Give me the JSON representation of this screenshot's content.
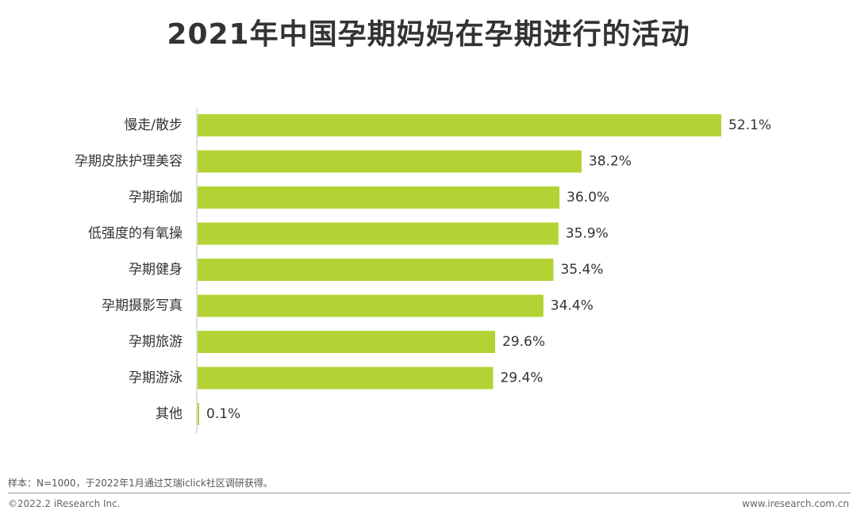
{
  "title": "2021年中国孕期妈妈在孕期进行的活动",
  "note": "样本：N=1000，于2022年1月通过艾瑞iclick社区调研获得。",
  "copyright": "©2022.2 iResearch Inc.",
  "website": "www.iresearch.com.cn",
  "colors": {
    "bar": "#b3d334",
    "axis": "#bfbfbf"
  },
  "chart_data": {
    "type": "bar",
    "orientation": "horizontal",
    "categories": [
      "慢走/散步",
      "孕期皮肤护理美容",
      "孕期瑜伽",
      "低强度的有氧操",
      "孕期健身",
      "孕期摄影写真",
      "孕期旅游",
      "孕期游泳",
      "其他"
    ],
    "values": [
      52.1,
      38.2,
      36.0,
      35.9,
      35.4,
      34.4,
      29.6,
      29.4,
      0.1
    ],
    "value_labels": [
      "52.1%",
      "38.2%",
      "36.0%",
      "35.9%",
      "35.4%",
      "34.4%",
      "29.6%",
      "29.4%",
      "0.1%"
    ],
    "unit": "%",
    "xlim": [
      0,
      52.1
    ],
    "grid": false,
    "legend": "none"
  }
}
